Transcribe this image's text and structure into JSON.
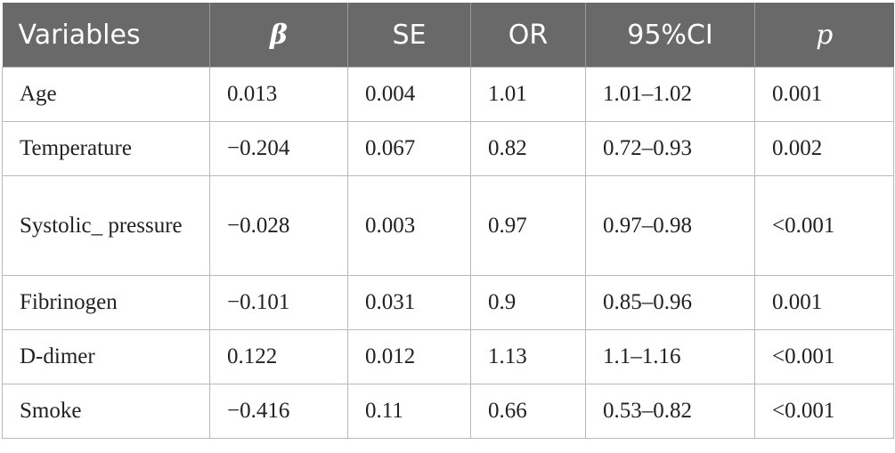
{
  "table": {
    "headers": [
      "Variables",
      "β",
      "SE",
      "OR",
      "95%CI",
      "p"
    ],
    "rows": [
      [
        "Age",
        "0.013",
        "0.004",
        "1.01",
        "1.01–1.02",
        "0.001"
      ],
      [
        "Temperature",
        "−0.204",
        "0.067",
        "0.82",
        "0.72–0.93",
        "0.002"
      ],
      [
        "Systolic_ pressure",
        "−0.028",
        "0.003",
        "0.97",
        "0.97–0.98",
        "<0.001"
      ],
      [
        "Fibrinogen",
        "−0.101",
        "0.031",
        "0.9",
        "0.85–0.96",
        "0.001"
      ],
      [
        "D-dimer",
        "0.122",
        "0.012",
        "1.13",
        "1.1–1.16",
        "<0.001"
      ],
      [
        "Smoke",
        "−0.416",
        "0.11",
        "0.66",
        "0.53–0.82",
        "<0.001"
      ]
    ]
  },
  "colors": {
    "header_bg": "#696969",
    "header_text": "#ffffff",
    "border": "#b8b8b8"
  }
}
